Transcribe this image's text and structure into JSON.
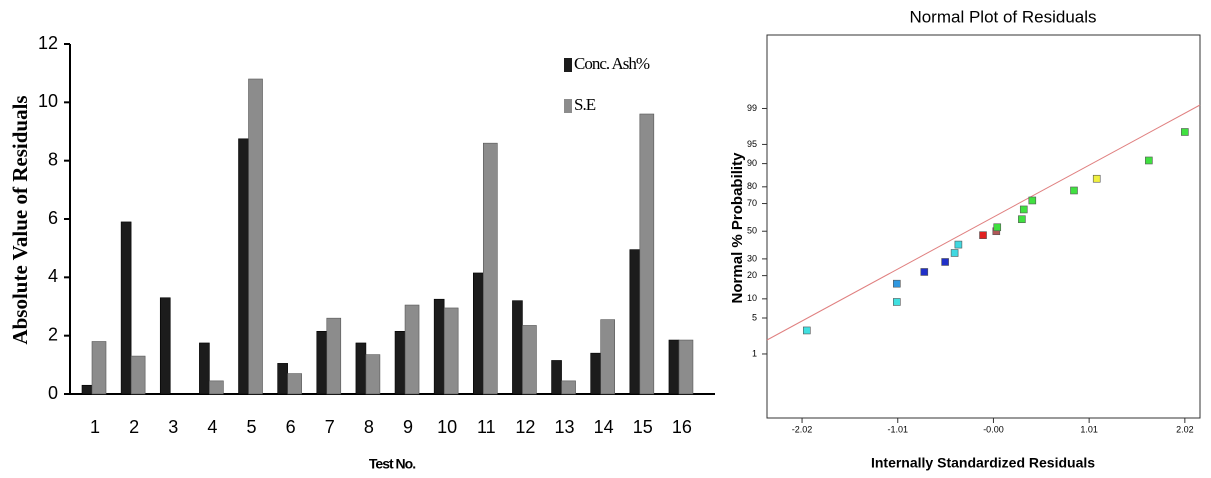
{
  "chart_data": [
    {
      "type": "bar",
      "categories": [
        "1",
        "2",
        "3",
        "4",
        "5",
        "6",
        "7",
        "8",
        "9",
        "10",
        "11",
        "12",
        "13",
        "14",
        "15",
        "16"
      ],
      "series": [
        {
          "name": "Conc. Ash%",
          "color": "#1c1c1c",
          "values": [
            0.3,
            5.9,
            3.3,
            1.75,
            8.75,
            1.05,
            2.15,
            1.75,
            2.15,
            3.25,
            4.15,
            3.2,
            1.15,
            1.4,
            4.95,
            1.85
          ]
        },
        {
          "name": "S.E",
          "color": "#8c8c8c",
          "values": [
            1.8,
            1.3,
            0,
            0.45,
            10.8,
            0.7,
            2.6,
            1.35,
            3.05,
            2.95,
            8.6,
            2.35,
            0.45,
            2.55,
            9.6,
            1.85
          ]
        }
      ],
      "ylim": [
        0,
        12
      ],
      "yticks": [
        0,
        2,
        4,
        6,
        8,
        10,
        12
      ],
      "y_label": "Absolute Value of Residuals",
      "x_label": "Test No."
    },
    {
      "type": "scatter",
      "title": "Normal Plot of Residuals",
      "x_label": "Internally Standardized Residuals",
      "y_label": "Normal % Probability",
      "x": [
        -1.97,
        -1.02,
        -1.02,
        -0.73,
        -0.51,
        -0.41,
        -0.37,
        -0.11,
        0.03,
        0.04,
        0.3,
        0.32,
        0.41,
        0.85,
        1.09,
        1.64,
        2.02
      ],
      "values": [
        3,
        9,
        16,
        22,
        28,
        34,
        40,
        47,
        50,
        53,
        59,
        66,
        72,
        78,
        84,
        91,
        97
      ],
      "colors": [
        "#40e0e0",
        "#40e0e0",
        "#3098e0",
        "#2030c8",
        "#2030c8",
        "#40d8e0",
        "#40d8e0",
        "#e02020",
        "#b05858",
        "#40e040",
        "#40e040",
        "#40e040",
        "#40e040",
        "#40e040",
        "#f0f040",
        "#40e040",
        "#40e040"
      ],
      "xlim": [
        -2.39,
        2.18
      ],
      "xticks": [
        -2.02,
        -1.01,
        {
          "value": 0,
          "label": "-0.00"
        },
        1.01,
        2.02
      ],
      "ylim": [
        0.02,
        99.99
      ],
      "yticks": [
        1,
        5,
        10,
        20,
        30,
        50,
        70,
        80,
        90,
        95,
        99
      ],
      "y_scale": "probit",
      "line_color": "#e08080"
    }
  ]
}
